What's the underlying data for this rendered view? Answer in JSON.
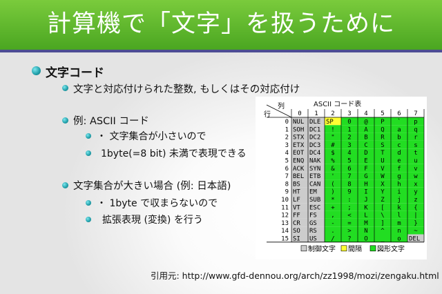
{
  "title": "計算機で「文字」を扱うために",
  "bullets": {
    "heading": "文字コード",
    "item1": "文字と対応付けられた整数, もしくはその対応付け",
    "item2": "例: ASCII コード",
    "item2_sub1": "・ 文字集合が小さいので",
    "item2_sub2": "1byte(=8 bit) 未満で表現できる",
    "item3": "文字集合が大きい場合 (例: 日本語)",
    "item3_sub1": "・ 1byte で収まらないので",
    "item3_sub2": "拡張表現 (変換) を行う"
  },
  "citation": "引用元: http://www.gfd-dennou.org/arch/zz1998/mozi/zengaku.html",
  "colors": {
    "title_bar": "#5cb82c",
    "control": "#cccccc",
    "space": "#ffff33",
    "graphic": "#22dd22"
  },
  "ascii_table": {
    "title": "ASCII コード表",
    "col_header": "列",
    "row_header": "行",
    "col_labels": [
      "0",
      "1",
      "2",
      "3",
      "4",
      "5",
      "6",
      "7"
    ],
    "row_labels": [
      "0",
      "1",
      "2",
      "3",
      "4",
      "5",
      "6",
      "7",
      "8",
      "9",
      "10",
      "11",
      "12",
      "13",
      "14",
      "15"
    ],
    "columns": [
      [
        "NUL",
        "SOH",
        "STX",
        "ETX",
        "EOT",
        "ENQ",
        "ACK",
        "BEL",
        "BS",
        "HT",
        "LF",
        "VT",
        "FF",
        "CR",
        "SO",
        "SI"
      ],
      [
        "DLE",
        "DC1",
        "DC2",
        "DC3",
        "DC4",
        "NAK",
        "SYN",
        "ETB",
        "CAN",
        "EM",
        "SUB",
        "ESC",
        "FS",
        "GS",
        "RS",
        "US"
      ],
      [
        "SP",
        "!",
        "\"",
        "#",
        "$",
        "%",
        "&",
        "'",
        "(",
        ")",
        "*",
        "+",
        ",",
        "-",
        ".",
        "/"
      ],
      [
        "0",
        "1",
        "2",
        "3",
        "4",
        "5",
        "6",
        "7",
        "8",
        "9",
        ":",
        ";",
        "<",
        "=",
        ">",
        "?"
      ],
      [
        "@",
        "A",
        "B",
        "C",
        "D",
        "E",
        "F",
        "G",
        "H",
        "I",
        "J",
        "K",
        "L",
        "M",
        "N",
        "O"
      ],
      [
        "P",
        "Q",
        "R",
        "S",
        "T",
        "U",
        "V",
        "W",
        "X",
        "Y",
        "Z",
        "[",
        "\\",
        "]",
        "^",
        "_"
      ],
      [
        "`",
        "a",
        "b",
        "c",
        "d",
        "e",
        "f",
        "g",
        "h",
        "i",
        "j",
        "k",
        "l",
        "m",
        "n",
        "o"
      ],
      [
        "p",
        "q",
        "r",
        "s",
        "t",
        "u",
        "v",
        "w",
        "x",
        "y",
        "z",
        "{",
        "|",
        "}",
        "~",
        "DEL"
      ]
    ],
    "legend": [
      "制御文字",
      "間隔",
      "図形文字"
    ]
  }
}
